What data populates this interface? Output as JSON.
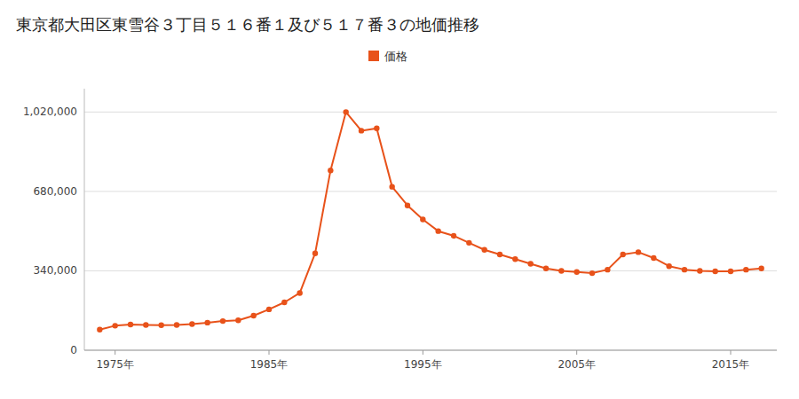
{
  "chart_data": {
    "type": "line",
    "title": "東京都大田区東雪谷３丁目５１６番１及び５１７番３の地価推移",
    "x": [
      1974,
      1975,
      1976,
      1977,
      1978,
      1979,
      1980,
      1981,
      1982,
      1983,
      1984,
      1985,
      1986,
      1987,
      1988,
      1989,
      1990,
      1991,
      1992,
      1993,
      1994,
      1995,
      1996,
      1997,
      1998,
      1999,
      2000,
      2001,
      2002,
      2003,
      2004,
      2005,
      2006,
      2007,
      2008,
      2009,
      2010,
      2011,
      2012,
      2013,
      2014,
      2015,
      2016,
      2017
    ],
    "series": [
      {
        "name": "価格",
        "color": "#e8521a",
        "marker": "circle",
        "values": [
          88000,
          105000,
          110000,
          108000,
          107000,
          108000,
          112000,
          118000,
          125000,
          128000,
          148000,
          175000,
          205000,
          245000,
          415000,
          770000,
          1020000,
          940000,
          950000,
          700000,
          620000,
          560000,
          510000,
          490000,
          460000,
          430000,
          410000,
          390000,
          370000,
          350000,
          340000,
          335000,
          330000,
          345000,
          410000,
          420000,
          395000,
          360000,
          345000,
          340000,
          338000,
          338000,
          345000,
          350000
        ]
      }
    ],
    "xlim": [
      1973,
      2018
    ],
    "xticks": [
      {
        "value": 1975,
        "label": "1975年"
      },
      {
        "value": 1985,
        "label": "1985年"
      },
      {
        "value": 1995,
        "label": "1995年"
      },
      {
        "value": 2005,
        "label": "2005年"
      },
      {
        "value": 2015,
        "label": "2015年"
      }
    ],
    "ylim": [
      0,
      1120000
    ],
    "yticks": [
      0,
      {
        "value": 340000,
        "label": "340,000"
      },
      {
        "value": 680000,
        "label": "680,000"
      },
      {
        "value": 1020000,
        "label": "1,020,000"
      }
    ],
    "grid": true,
    "legend": "top"
  }
}
